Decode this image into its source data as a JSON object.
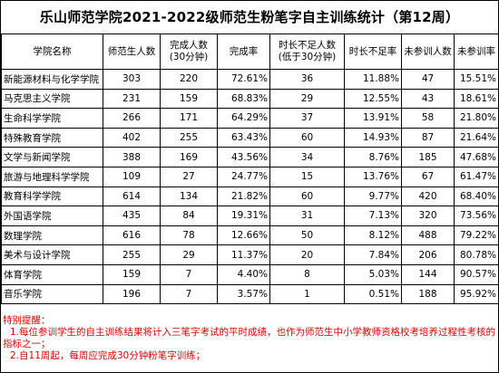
{
  "title": "乐山师范学院2021-2022级师范生粉笔字自主训练统计（第12周）",
  "columns": [
    "学院名称",
    "师范生人数",
    "完成人数\n(30分钟)",
    "完成率",
    "时长不足人数\n(低于30分钟)",
    "时长不足率",
    "未参训人数",
    "未参训率"
  ],
  "rows": [
    {
      "name": "新能源材料与化学学院",
      "students": "303",
      "completed": "220",
      "completion_rate": "72.61%",
      "short": "36",
      "short_rate": "11.88%",
      "absent": "47",
      "absent_rate": "15.51%"
    },
    {
      "name": "马克思主义学院",
      "students": "231",
      "completed": "159",
      "completion_rate": "68.83%",
      "short": "29",
      "short_rate": "12.55%",
      "absent": "43",
      "absent_rate": "18.61%"
    },
    {
      "name": "生命科学学院",
      "students": "266",
      "completed": "171",
      "completion_rate": "64.29%",
      "short": "37",
      "short_rate": "13.91%",
      "absent": "58",
      "absent_rate": "21.80%"
    },
    {
      "name": "特殊教育学院",
      "students": "402",
      "completed": "255",
      "completion_rate": "63.43%",
      "short": "60",
      "short_rate": "14.93%",
      "absent": "87",
      "absent_rate": "21.64%"
    },
    {
      "name": "文学与新闻学院",
      "students": "388",
      "completed": "169",
      "completion_rate": "43.56%",
      "short": "34",
      "short_rate": "8.76%",
      "absent": "185",
      "absent_rate": "47.68%"
    },
    {
      "name": "旅游与地理科学学院",
      "students": "109",
      "completed": "27",
      "completion_rate": "24.77%",
      "short": "15",
      "short_rate": "13.76%",
      "absent": "67",
      "absent_rate": "61.47%"
    },
    {
      "name": "教育科学学院",
      "students": "614",
      "completed": "134",
      "completion_rate": "21.82%",
      "short": "60",
      "short_rate": "9.77%",
      "absent": "420",
      "absent_rate": "68.40%"
    },
    {
      "name": "外国语学院",
      "students": "435",
      "completed": "84",
      "completion_rate": "19.31%",
      "short": "31",
      "short_rate": "7.13%",
      "absent": "320",
      "absent_rate": "73.56%"
    },
    {
      "name": "数理学院",
      "students": "616",
      "completed": "78",
      "completion_rate": "12.66%",
      "short": "50",
      "short_rate": "8.12%",
      "absent": "488",
      "absent_rate": "79.22%"
    },
    {
      "name": "美术与设计学院",
      "students": "255",
      "completed": "29",
      "completion_rate": "11.37%",
      "short": "20",
      "short_rate": "7.84%",
      "absent": "206",
      "absent_rate": "80.78%"
    },
    {
      "name": "体育学院",
      "students": "159",
      "completed": "7",
      "completion_rate": "4.40%",
      "short": "8",
      "short_rate": "5.03%",
      "absent": "144",
      "absent_rate": "90.57%"
    },
    {
      "name": "音乐学院",
      "students": "196",
      "completed": "7",
      "completion_rate": "3.57%",
      "short": "1",
      "short_rate": "0.51%",
      "absent": "188",
      "absent_rate": "95.92%"
    }
  ],
  "notes": {
    "heading": "特别提醒：",
    "items": [
      "1.每位参训学生的自主训练结果将计入三笔字考试的平时成绩，也作为师范生中小学教师资格校考培养过程性考核的指标之一；",
      "2.自11周起，每周应完成30分钟粉笔字训练；"
    ]
  },
  "colors": {
    "note_text": "#e00000",
    "grid": "#000000",
    "background": "#ffffff"
  }
}
